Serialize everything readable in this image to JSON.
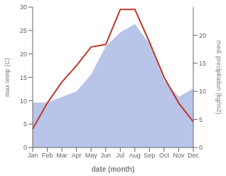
{
  "chart_data": {
    "type": "line",
    "categories": [
      "Jan",
      "Feb",
      "Mar",
      "Apr",
      "May",
      "Jun",
      "Jul",
      "Aug",
      "Sep",
      "Oct",
      "Nov",
      "Dec"
    ],
    "series": [
      {
        "type": "area",
        "axis": "y2",
        "color": "#b8c4e8",
        "values": [
          8.0,
          8.0,
          9.0,
          10.0,
          13.0,
          18.0,
          20.5,
          22.0,
          18.5,
          12.0,
          9.0,
          10.5
        ]
      },
      {
        "type": "line",
        "axis": "y",
        "color": "#c0392b",
        "values": [
          4.0,
          9.5,
          14.0,
          17.5,
          21.5,
          22.0,
          29.5,
          29.5,
          22.5,
          15.0,
          9.5,
          5.5
        ]
      }
    ],
    "xlabel": "date (month)",
    "ylabel": "max temp (C)",
    "y2label": "med. precipitation (kg/m2)",
    "ylim": [
      0,
      30
    ],
    "yticks": [
      0,
      5,
      10,
      15,
      20,
      25,
      30
    ],
    "y2lim": [
      0,
      25
    ],
    "y2ticks": [
      0,
      5,
      10,
      15,
      20
    ],
    "grid": false
  }
}
